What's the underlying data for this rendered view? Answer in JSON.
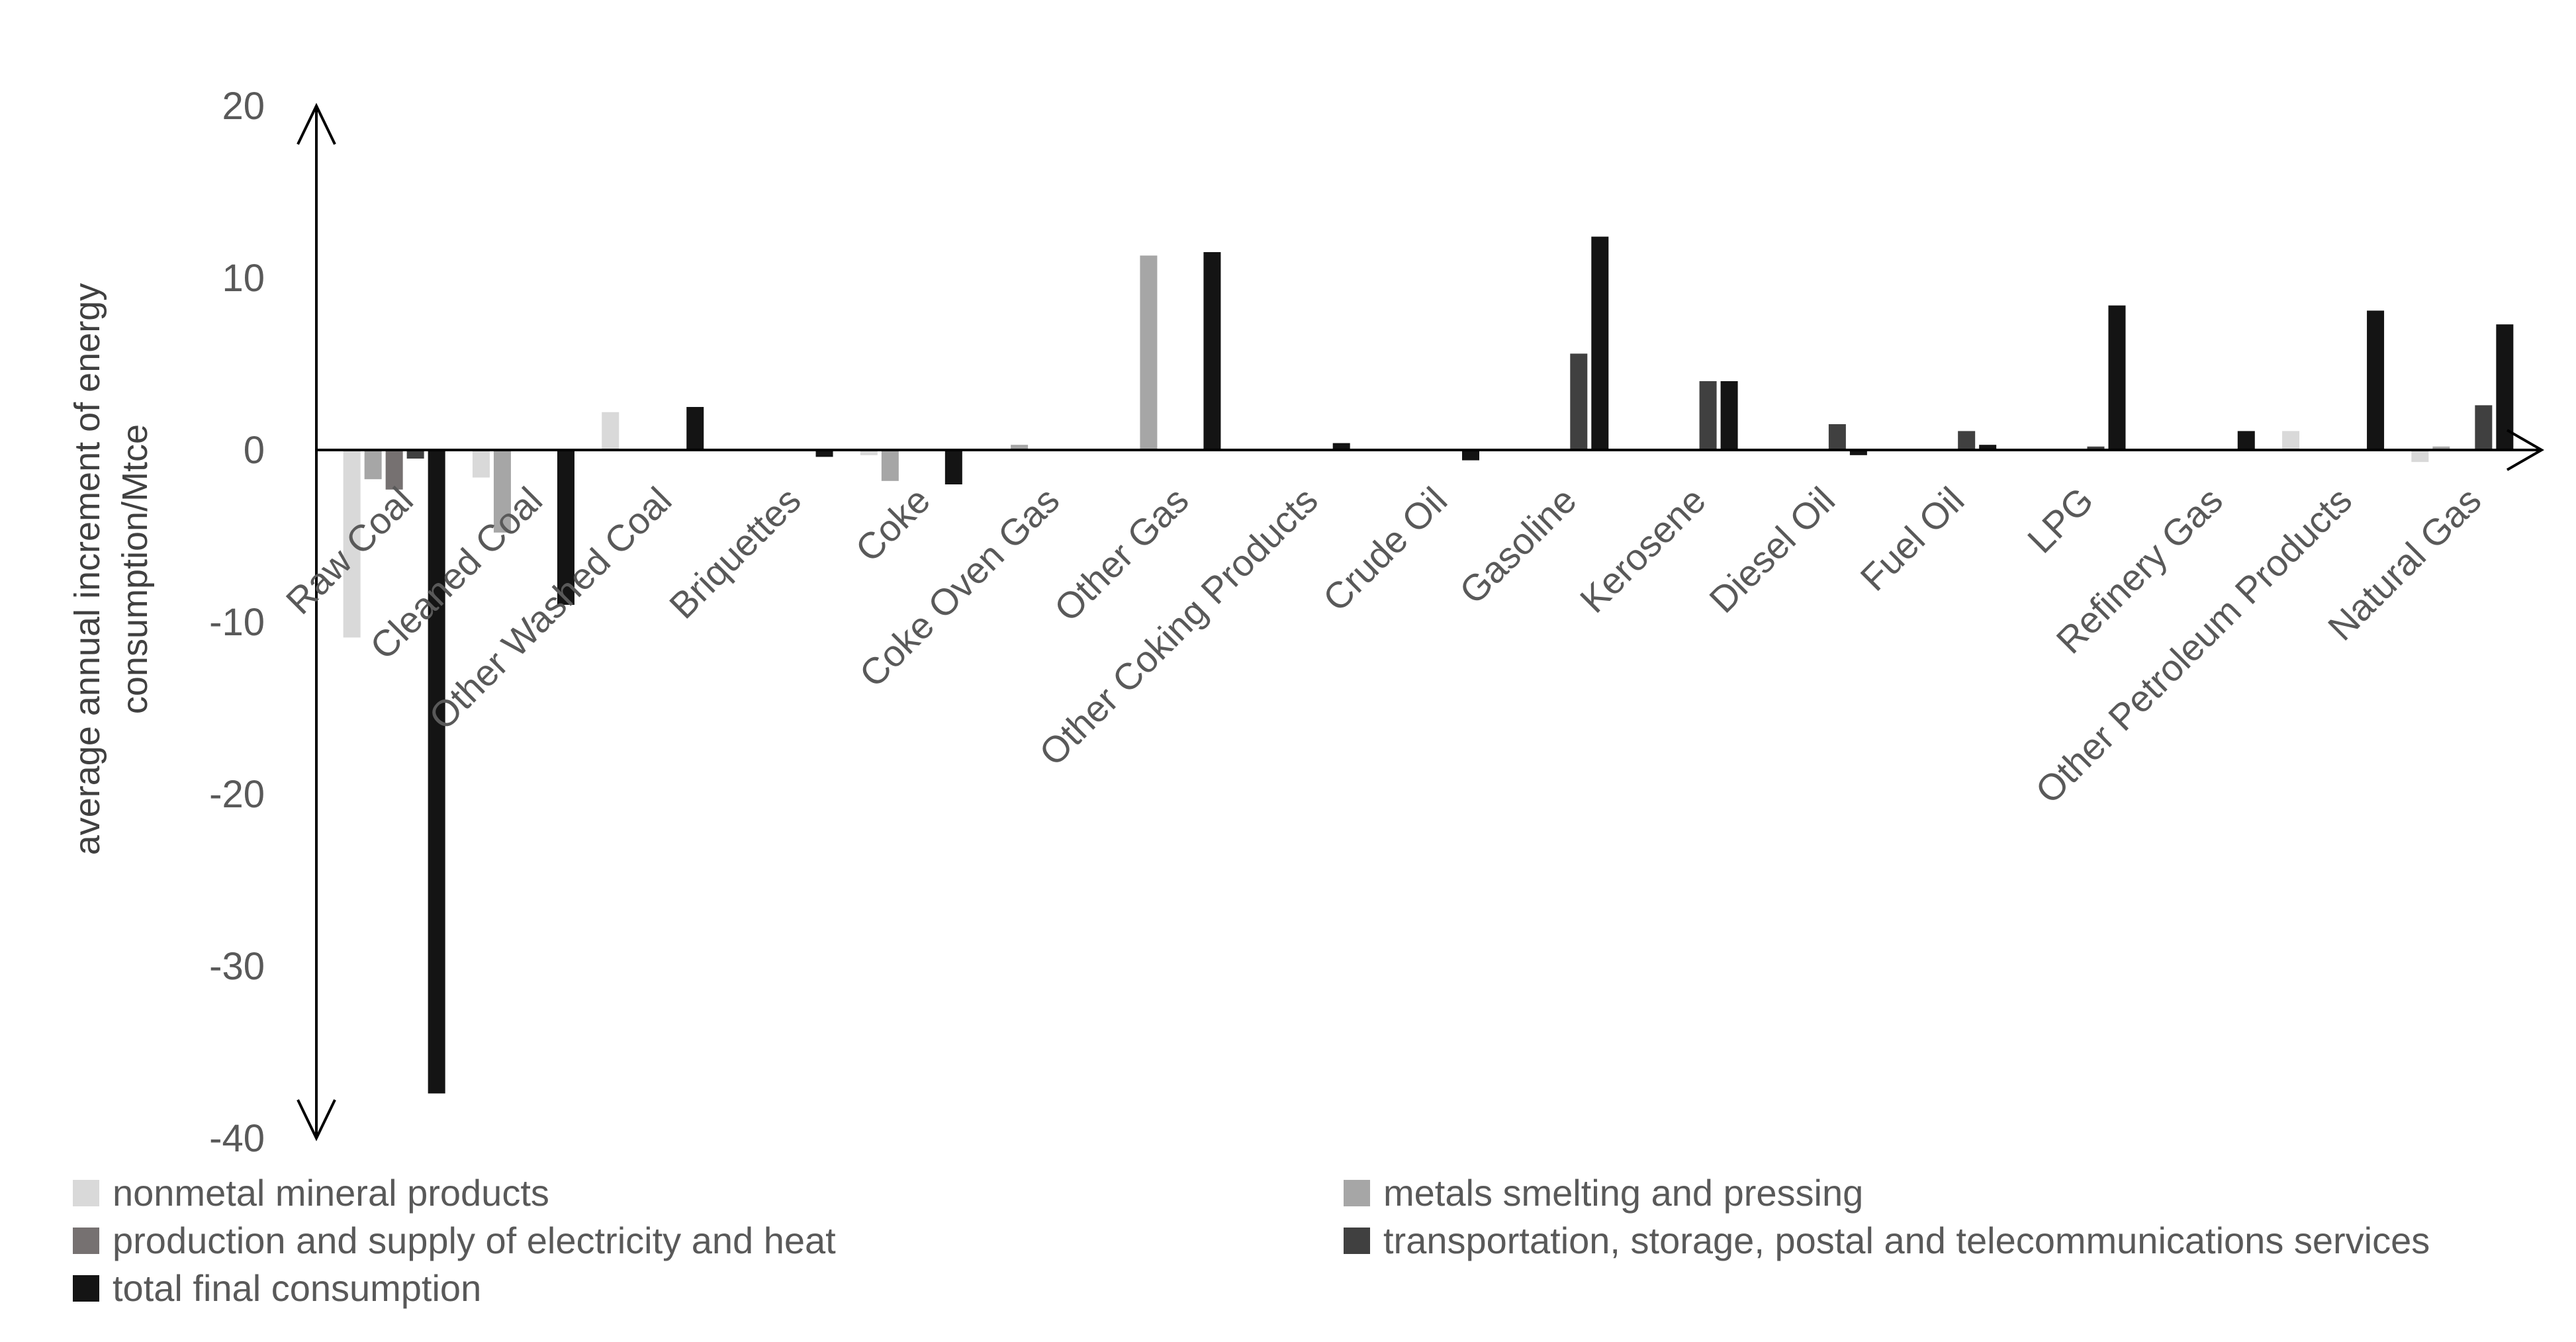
{
  "chart_data": {
    "type": "bar",
    "title": "",
    "ylabel": "average annual increment of energy consumption/Mtce",
    "xlabel": "",
    "ylim": [
      -40,
      20
    ],
    "yticks": [
      20,
      10,
      0,
      -10,
      -20,
      -30,
      -40
    ],
    "grid": false,
    "legend_position": "bottom",
    "categories": [
      "Raw Coal",
      "Cleaned Coal",
      "Other Washed Coal",
      "Briquettes",
      "Coke",
      "Coke Oven Gas",
      "Other Gas",
      "Other Coking Products",
      "Crude Oil",
      "Gasoline",
      "Kerosene",
      "Diesel Oil",
      "Fuel Oil",
      "LPG",
      "Refinery Gas",
      "Other Petroleum Products",
      "Natural Gas"
    ],
    "series": [
      {
        "name": "nonmetal mineral products",
        "color": "#d9d9d9",
        "values": [
          -10.9,
          -1.6,
          2.2,
          0,
          -0.3,
          0,
          0,
          0,
          0,
          0,
          0,
          0,
          0,
          0,
          0,
          1.1,
          -0.7
        ]
      },
      {
        "name": "metals smelting and pressing",
        "color": "#a6a6a6",
        "values": [
          -1.7,
          -4.8,
          0,
          0,
          -1.8,
          0.3,
          11.3,
          0,
          0,
          0,
          0,
          0,
          0,
          0,
          0,
          0,
          0.2
        ]
      },
      {
        "name": "production and supply of electricity and heat",
        "color": "#767171",
        "values": [
          -2.3,
          0,
          0,
          0,
          0,
          0,
          0,
          0,
          0,
          0,
          0,
          0,
          0,
          0,
          0,
          0,
          0
        ]
      },
      {
        "name": "transportation, storage, postal and telecommunications services",
        "color": "#404040",
        "values": [
          -0.5,
          0,
          0,
          0,
          0,
          0,
          0,
          0,
          0,
          5.6,
          4.0,
          1.5,
          1.1,
          0.2,
          0,
          0,
          2.6
        ]
      },
      {
        "name": "total final consumption",
        "color": "#141414",
        "values": [
          -37.4,
          -9.0,
          2.5,
          -0.4,
          -2.0,
          0,
          11.5,
          0.4,
          -0.6,
          12.4,
          4.0,
          -0.3,
          0.3,
          8.4,
          1.1,
          8.1,
          7.3
        ]
      }
    ]
  }
}
